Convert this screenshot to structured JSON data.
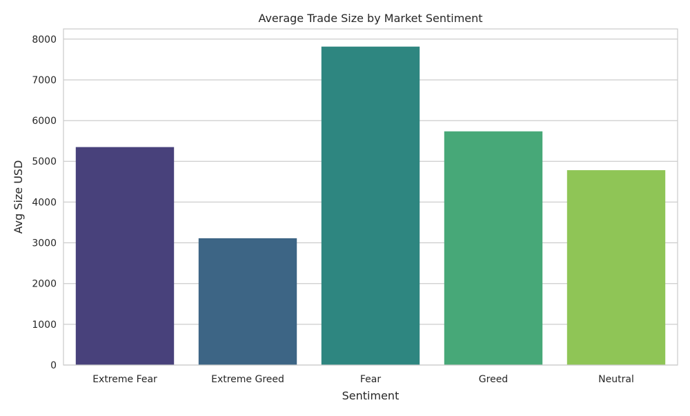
{
  "chart_data": {
    "type": "bar",
    "title": "Average Trade Size by Market Sentiment",
    "xlabel": "Sentiment",
    "ylabel": "Avg Size USD",
    "categories": [
      "Extreme Fear",
      "Extreme Greed",
      "Fear",
      "Greed",
      "Neutral"
    ],
    "values": [
      5350,
      3112,
      7816,
      5736,
      4783
    ],
    "colors": [
      "#48417b",
      "#3d6585",
      "#2e8680",
      "#47a878",
      "#8fc556"
    ],
    "ylim": [
      0,
      8250
    ],
    "yticks": [
      0,
      1000,
      2000,
      3000,
      4000,
      5000,
      6000,
      7000,
      8000
    ],
    "grid": true,
    "grid_color": "#cccccc",
    "legend": "none"
  }
}
